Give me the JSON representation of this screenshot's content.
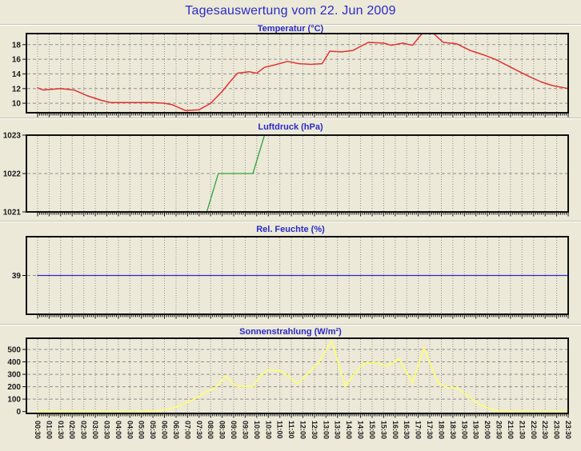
{
  "page": {
    "title": "Tagesauswertung vom 22. Jun 2009",
    "background_color": "#ECE9D8",
    "title_color": "#2A2AC8",
    "axis_text_color": "#1A1A1A",
    "grid_color": "#8F8F8F",
    "frame_color": "#101010"
  },
  "time_axis": {
    "tick_labels": [
      "00:30",
      "01:00",
      "01:30",
      "02:00",
      "02:30",
      "03:00",
      "03:30",
      "04:00",
      "04:30",
      "05:00",
      "05:30",
      "06:00",
      "06:30",
      "07:00",
      "07:30",
      "08:00",
      "08:30",
      "09:00",
      "09:30",
      "10:00",
      "10:30",
      "11:00",
      "11:30",
      "12:00",
      "12:30",
      "13:00",
      "13:30",
      "14:00",
      "14:30",
      "15:00",
      "15:30",
      "16:00",
      "16:30",
      "17:00",
      "17:30",
      "18:00",
      "18:30",
      "19:00",
      "19:30",
      "20:00",
      "20:30",
      "21:00",
      "21:30",
      "22:00",
      "22:30",
      "23:00",
      "23:30"
    ]
  },
  "chart_data": [
    {
      "type": "line",
      "name": "temperature",
      "title": "Temperatur (°C)",
      "unit": "°C",
      "color": "#E13232",
      "line_width": 1.5,
      "y_ticks": [
        10,
        12,
        14,
        16,
        18
      ],
      "y_range": [
        8.7,
        19.5
      ],
      "points": [
        [
          "00:30",
          12.1
        ],
        [
          "00:45",
          11.8
        ],
        [
          "01:30",
          12.0
        ],
        [
          "02:05",
          11.8
        ],
        [
          "02:40",
          11.0
        ],
        [
          "03:15",
          10.4
        ],
        [
          "03:40",
          10.1
        ],
        [
          "04:40",
          10.1
        ],
        [
          "05:30",
          10.1
        ],
        [
          "06:00",
          10.0
        ],
        [
          "06:20",
          9.8
        ],
        [
          "06:55",
          9.0
        ],
        [
          "07:30",
          9.1
        ],
        [
          "08:00",
          10.0
        ],
        [
          "08:30",
          11.6
        ],
        [
          "08:50",
          12.9
        ],
        [
          "09:10",
          14.1
        ],
        [
          "09:40",
          14.3
        ],
        [
          "10:00",
          14.1
        ],
        [
          "10:20",
          14.9
        ],
        [
          "10:45",
          15.2
        ],
        [
          "11:20",
          15.7
        ],
        [
          "11:50",
          15.4
        ],
        [
          "12:20",
          15.3
        ],
        [
          "12:50",
          15.4
        ],
        [
          "13:10",
          17.1
        ],
        [
          "13:40",
          17.0
        ],
        [
          "14:10",
          17.2
        ],
        [
          "14:50",
          18.3
        ],
        [
          "15:30",
          18.2
        ],
        [
          "15:50",
          17.9
        ],
        [
          "16:20",
          18.2
        ],
        [
          "16:45",
          17.9
        ],
        [
          "17:10",
          19.5
        ],
        [
          "17:40",
          19.5
        ],
        [
          "18:05",
          18.3
        ],
        [
          "18:40",
          18.1
        ],
        [
          "19:15",
          17.2
        ],
        [
          "19:50",
          16.6
        ],
        [
          "20:20",
          16.0
        ],
        [
          "20:50",
          15.2
        ],
        [
          "21:20",
          14.4
        ],
        [
          "21:50",
          13.6
        ],
        [
          "22:20",
          12.9
        ],
        [
          "22:50",
          12.4
        ],
        [
          "23:20",
          12.1
        ],
        [
          "23:30",
          12.0
        ]
      ]
    },
    {
      "type": "line",
      "name": "pressure",
      "title": "Luftdruck (hPa)",
      "unit": "hPa",
      "color": "#2EA43C",
      "line_width": 1.3,
      "y_ticks": [
        1021,
        1022,
        1023
      ],
      "y_range": [
        1021,
        1023
      ],
      "points": [
        [
          "00:30",
          1021
        ],
        [
          "07:50",
          1021
        ],
        [
          "08:20",
          1022
        ],
        [
          "09:50",
          1022
        ],
        [
          "10:20",
          1023
        ],
        [
          "23:30",
          1023
        ]
      ]
    },
    {
      "type": "line",
      "name": "humidity",
      "title": "Rel. Feuchte (%)",
      "unit": "%",
      "color": "#2B2BC8",
      "line_width": 1.3,
      "y_ticks": [
        39
      ],
      "y_range": [
        34,
        44
      ],
      "points": [
        [
          "00:30",
          39
        ],
        [
          "23:30",
          39
        ]
      ]
    },
    {
      "type": "line",
      "name": "solar-radiation",
      "title": "Sonnenstrahlung (W/m²)",
      "unit": "W/m²",
      "color": "#FFFF6E",
      "line_width": 1.6,
      "y_ticks": [
        0,
        100,
        200,
        300,
        400,
        500
      ],
      "y_range": [
        -15,
        590
      ],
      "points": [
        [
          "00:30",
          0
        ],
        [
          "05:00",
          0
        ],
        [
          "05:30",
          5
        ],
        [
          "06:00",
          15
        ],
        [
          "06:30",
          35
        ],
        [
          "07:00",
          75
        ],
        [
          "07:30",
          120
        ],
        [
          "07:50",
          165
        ],
        [
          "08:10",
          185
        ],
        [
          "08:40",
          285
        ],
        [
          "09:05",
          205
        ],
        [
          "09:50",
          200
        ],
        [
          "10:10",
          290
        ],
        [
          "10:30",
          335
        ],
        [
          "11:05",
          325
        ],
        [
          "11:45",
          225
        ],
        [
          "12:10",
          295
        ],
        [
          "12:40",
          390
        ],
        [
          "13:15",
          570
        ],
        [
          "13:50",
          205
        ],
        [
          "14:20",
          330
        ],
        [
          "14:40",
          390
        ],
        [
          "15:10",
          395
        ],
        [
          "15:40",
          365
        ],
        [
          "16:10",
          425
        ],
        [
          "16:45",
          230
        ],
        [
          "17:15",
          515
        ],
        [
          "17:50",
          240
        ],
        [
          "18:10",
          195
        ],
        [
          "18:40",
          190
        ],
        [
          "19:10",
          120
        ],
        [
          "19:40",
          55
        ],
        [
          "20:10",
          15
        ],
        [
          "20:40",
          3
        ],
        [
          "21:00",
          0
        ],
        [
          "23:30",
          0
        ]
      ]
    }
  ]
}
